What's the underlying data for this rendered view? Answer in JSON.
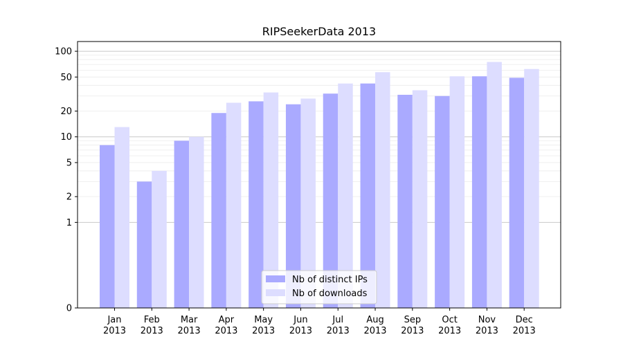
{
  "chart_data": {
    "type": "bar",
    "title": "RIPSeekerData 2013",
    "xlabel": "",
    "ylabel": "",
    "y_scale": "symlog",
    "ylim": [
      0,
      130
    ],
    "y_ticks": [
      0,
      1,
      2,
      5,
      10,
      20,
      50,
      100
    ],
    "grid": true,
    "legend_position": "bottom-center",
    "categories": [
      [
        "Jan",
        "2013"
      ],
      [
        "Feb",
        "2013"
      ],
      [
        "Mar",
        "2013"
      ],
      [
        "Apr",
        "2013"
      ],
      [
        "May",
        "2013"
      ],
      [
        "Jun",
        "2013"
      ],
      [
        "Jul",
        "2013"
      ],
      [
        "Aug",
        "2013"
      ],
      [
        "Sep",
        "2013"
      ],
      [
        "Oct",
        "2013"
      ],
      [
        "Nov",
        "2013"
      ],
      [
        "Dec",
        "2013"
      ]
    ],
    "series": [
      {
        "name": "Nb of distinct IPs",
        "color": "#aaaaff",
        "values": [
          8,
          3,
          9,
          19,
          26,
          24,
          32,
          42,
          31,
          30,
          51,
          49
        ]
      },
      {
        "name": "Nb of downloads",
        "color": "#ddddff",
        "values": [
          13,
          4,
          10,
          25,
          33,
          28,
          42,
          57,
          35,
          51,
          75,
          62
        ]
      }
    ]
  }
}
